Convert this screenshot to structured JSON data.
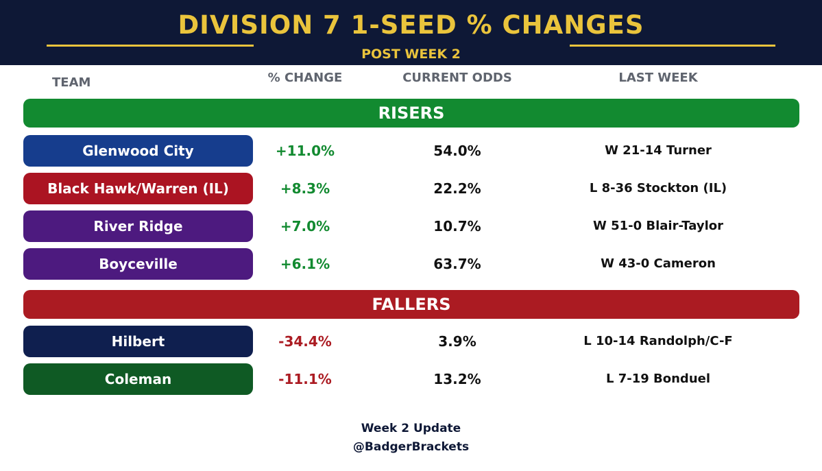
{
  "title": "DIVISION 7 1-SEED % CHANGES",
  "subtitle": "POST WEEK 2",
  "columns": {
    "team": "TEAM",
    "change": "% CHANGE",
    "odds": "CURRENT ODDS",
    "last_week": "LAST WEEK"
  },
  "colors": {
    "header_bg": "#0e1836",
    "gold": "#eac43c",
    "risers": "#128a30",
    "fallers": "#ab1b22",
    "positive_text": "#128a30",
    "negative_text": "#ab1b22"
  },
  "chart_data": {
    "type": "table",
    "sections": [
      {
        "label": "RISERS",
        "rows": [
          {
            "team": "Glenwood City",
            "change": "+11.0%",
            "odds": "54.0%",
            "last_week": "W 21-14 Turner",
            "color": "#163d8d"
          },
          {
            "team": "Black Hawk/Warren (IL)",
            "change": "+8.3%",
            "odds": "22.2%",
            "last_week": "L 8-36 Stockton (IL)",
            "color": "#ab1422"
          },
          {
            "team": "River Ridge",
            "change": "+7.0%",
            "odds": "10.7%",
            "last_week": "W 51-0 Blair-Taylor",
            "color": "#4d1a7f"
          },
          {
            "team": "Boyceville",
            "change": "+6.1%",
            "odds": "63.7%",
            "last_week": "W 43-0 Cameron",
            "color": "#4d1a7f"
          }
        ]
      },
      {
        "label": "FALLERS",
        "rows": [
          {
            "team": "Hilbert",
            "change": "-34.4%",
            "odds": "3.9%",
            "last_week": "L 10-14 Randolph/C-F",
            "color": "#0f1f4f"
          },
          {
            "team": "Coleman",
            "change": "-11.1%",
            "odds": "13.2%",
            "last_week": "L 7-19 Bonduel",
            "color": "#0f5a24"
          }
        ]
      }
    ]
  },
  "footer": {
    "line1": "Week 2 Update",
    "line2": "@BadgerBrackets"
  }
}
